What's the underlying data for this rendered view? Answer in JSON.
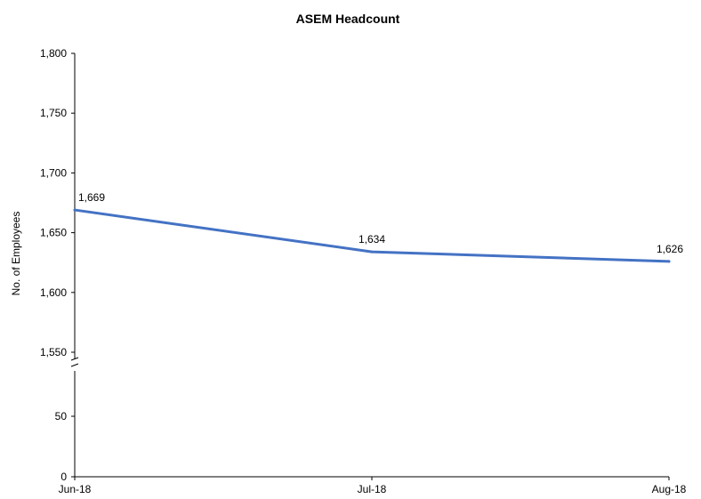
{
  "chart_data": {
    "type": "line",
    "title": "ASEM Headcount",
    "ylabel": "No. of Employees",
    "xlabel": "",
    "categories": [
      "Jun-18",
      "Jul-18",
      "Aug-18"
    ],
    "series": [
      {
        "values": [
          1669,
          1634,
          1626
        ],
        "data_labels": [
          "1,669",
          "1,634",
          "1,626"
        ],
        "color": "#4472C4"
      }
    ],
    "y_axis_broken": true,
    "y_upper_segment": {
      "range": [
        1550,
        1800
      ],
      "ticks": [
        1550,
        1600,
        1650,
        1700,
        1750,
        1800
      ],
      "tick_labels": [
        "1,550",
        "1,600",
        "1,650",
        "1,700",
        "1,750",
        "1,800"
      ]
    },
    "y_lower_segment": {
      "range": [
        0,
        50
      ],
      "ticks": [
        0,
        50
      ],
      "tick_labels": [
        "0",
        "50"
      ]
    },
    "grid": false,
    "legend": "none"
  }
}
